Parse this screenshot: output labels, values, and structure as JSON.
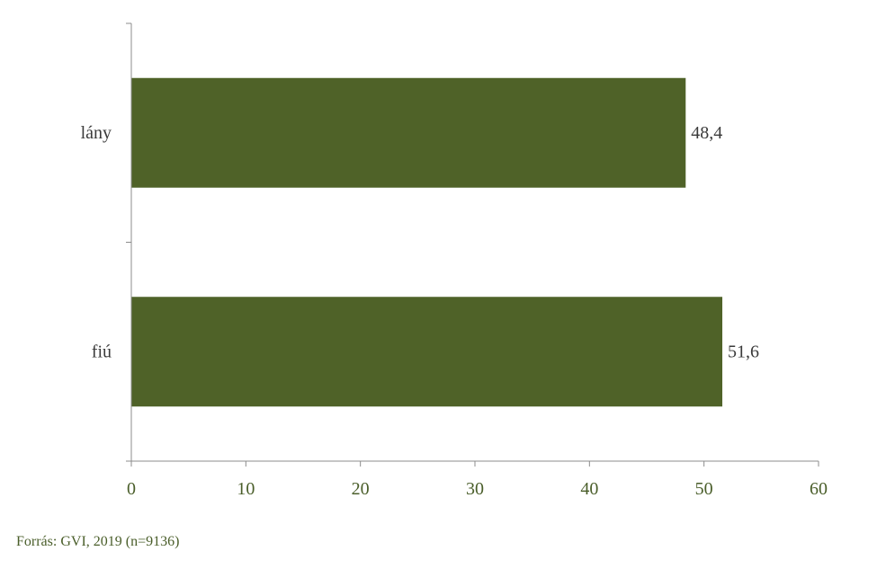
{
  "chart_data": {
    "type": "bar",
    "orientation": "horizontal",
    "categories": [
      "lány",
      "fiú"
    ],
    "values": [
      48.4,
      51.6
    ],
    "data_labels": [
      "48,4",
      "51,6"
    ],
    "xlim": [
      0,
      60
    ],
    "x_ticks": [
      0,
      10,
      20,
      30,
      40,
      50,
      60
    ],
    "x_tick_labels": [
      "0",
      "10",
      "20",
      "30",
      "40",
      "50",
      "60"
    ],
    "bar_color": "#4f6228",
    "axis_color": "#8c8c8c",
    "tick_label_color": "#4a5e2a",
    "grid": false,
    "legend": "none"
  },
  "source": "Forrás: GVI, 2019 (n=9136)"
}
